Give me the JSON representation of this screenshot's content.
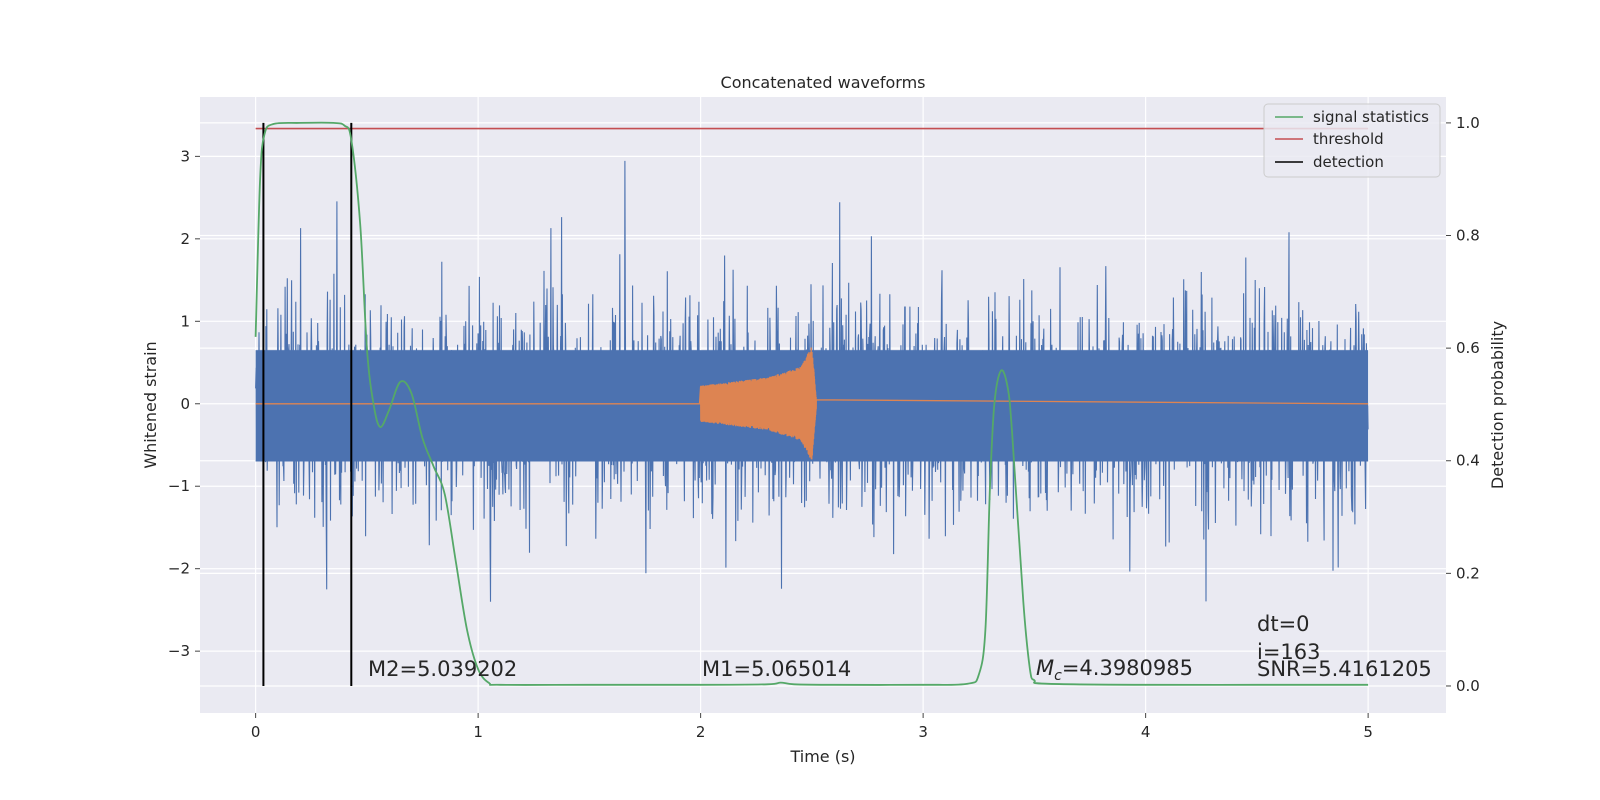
{
  "chart_data": {
    "type": "line",
    "title": "Concatenated waveforms",
    "xlabel": "Time (s)",
    "ylabel_left": "Whitened strain",
    "ylabel_right": "Detection probability",
    "xlim": [
      -0.25,
      5.35
    ],
    "ylim_left": [
      -3.75,
      3.72
    ],
    "ylim_right": [
      -0.048,
      1.046
    ],
    "x_ticks": [
      0,
      1,
      2,
      3,
      4,
      5
    ],
    "y_ticks_left": [
      -3,
      -2,
      -1,
      0,
      1,
      2,
      3
    ],
    "y_ticks_right": [
      0.0,
      0.2,
      0.4,
      0.6,
      0.8,
      1.0
    ],
    "grid": true,
    "legend_position": "top-right",
    "colors": {
      "background": "#eaeaf2",
      "grid": "#ffffff",
      "noise": "#4c72b0",
      "injection": "#dd8452",
      "signal_statistics": "#55a868",
      "threshold": "#c44e52",
      "detection": "#000000"
    },
    "series": [
      {
        "name": "signal statistics",
        "axis": "right",
        "x": [
          0.0,
          0.02,
          0.04,
          0.08,
          0.2,
          0.35,
          0.4,
          0.43,
          0.47,
          0.5,
          0.53,
          0.56,
          0.6,
          0.65,
          0.7,
          0.75,
          0.8,
          0.85,
          0.9,
          0.95,
          1.0,
          1.05,
          1.1,
          1.5,
          2.0,
          2.3,
          2.36,
          2.42,
          2.6,
          3.0,
          3.2,
          3.25,
          3.28,
          3.3,
          3.32,
          3.35,
          3.38,
          3.4,
          3.45,
          3.48,
          3.5,
          3.55,
          4.0,
          4.5,
          5.0
        ],
        "y": [
          0.62,
          0.9,
          0.98,
          0.998,
          1.0,
          1.0,
          0.995,
          0.97,
          0.82,
          0.6,
          0.5,
          0.46,
          0.49,
          0.54,
          0.52,
          0.44,
          0.39,
          0.34,
          0.22,
          0.1,
          0.03,
          0.005,
          0.002,
          0.002,
          0.002,
          0.003,
          0.006,
          0.003,
          0.002,
          0.002,
          0.004,
          0.02,
          0.1,
          0.35,
          0.5,
          0.56,
          0.53,
          0.45,
          0.15,
          0.03,
          0.01,
          0.004,
          0.002,
          0.002,
          0.002
        ]
      },
      {
        "name": "threshold",
        "axis": "right",
        "x": [
          0.0,
          5.0
        ],
        "y": [
          0.99,
          0.99
        ]
      },
      {
        "name": "detection",
        "axis": "right",
        "type": "vlines",
        "x": [
          0.035,
          0.43
        ],
        "y_range": [
          0.0,
          1.0
        ]
      },
      {
        "name": "noise",
        "axis": "left",
        "type": "noise-band",
        "x": [
          0.0,
          5.0
        ],
        "amplitude_envelope": 3.2,
        "core_band": [
          -0.7,
          0.65
        ]
      },
      {
        "name": "injection",
        "axis": "left",
        "type": "chirp",
        "x": [
          0.0,
          2.0,
          2.3,
          2.45,
          2.5,
          2.52,
          5.0
        ],
        "amplitude": [
          0.0,
          0.22,
          0.32,
          0.45,
          0.7,
          0.05,
          0.0
        ]
      }
    ],
    "annotations": [
      {
        "text": "M2=5.039202",
        "x": 0.5,
        "y": -3.35
      },
      {
        "text": "M1=5.065014",
        "x": 2.0,
        "y": -3.35
      },
      {
        "text_base": "M",
        "text_sub": "c",
        "text_rest": "=4.3980985",
        "x": 3.5,
        "y": -3.35
      },
      {
        "text": "dt=0",
        "x": 4.5,
        "y": -2.7
      },
      {
        "text": "i=163",
        "x": 4.5,
        "y": -3.05
      },
      {
        "text": "SNR=5.4161205",
        "x": 4.5,
        "y": -3.35
      }
    ]
  }
}
